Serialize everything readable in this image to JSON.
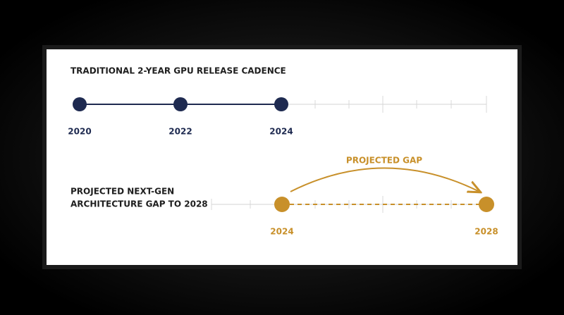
{
  "timeline_1": {
    "title": "TRADITIONAL 2-YEAR GPU RELEASE CADENCE",
    "milestones": [
      "2020",
      "2022",
      "2024"
    ]
  },
  "timeline_2": {
    "title_lines": [
      "PROJECTED NEXT-GEN",
      "ARCHITECTURE GAP TO 2028"
    ],
    "gap_label": "PROJECTED GAP",
    "milestones": [
      "2024",
      "2028"
    ]
  }
}
